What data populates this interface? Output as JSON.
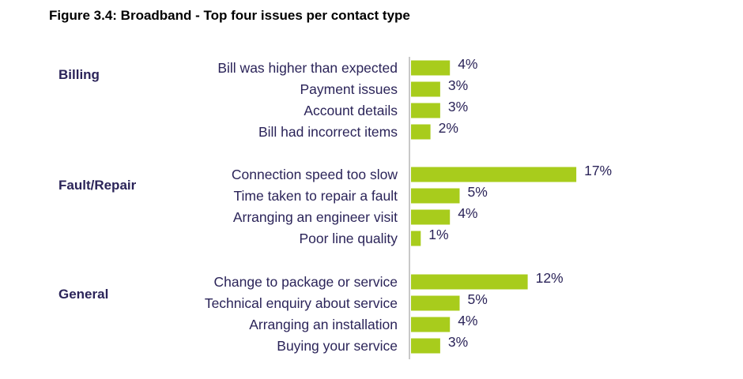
{
  "chart_data": {
    "type": "bar",
    "orientation": "horizontal",
    "title": "Figure 3.4: Broadband - Top four issues per contact type",
    "xlabel": "",
    "ylabel": "",
    "value_suffix": "%",
    "xlim": [
      0,
      17
    ],
    "bar_color": "#a8cc1c",
    "axis_color": "#c8c8c8",
    "label_color": "#2b2459",
    "groups": [
      {
        "name": "Billing",
        "categories": [
          "Bill was higher than expected",
          "Payment issues",
          "Account details",
          "Bill had incorrect items"
        ],
        "values": [
          4,
          3,
          3,
          2
        ],
        "labels": [
          "4%",
          "3%",
          "3%",
          "2%"
        ]
      },
      {
        "name": "Fault/Repair",
        "categories": [
          "Connection speed too slow",
          "Time taken to repair a fault",
          "Arranging an engineer visit",
          "Poor line quality"
        ],
        "values": [
          17,
          5,
          4,
          1
        ],
        "labels": [
          "17%",
          "5%",
          "4%",
          "1%"
        ]
      },
      {
        "name": "General",
        "categories": [
          "Change to package or service",
          "Technical enquiry about service",
          "Arranging an installation",
          "Buying your service"
        ],
        "values": [
          12,
          5,
          4,
          3
        ],
        "labels": [
          "12%",
          "5%",
          "4%",
          "3%"
        ]
      }
    ]
  }
}
